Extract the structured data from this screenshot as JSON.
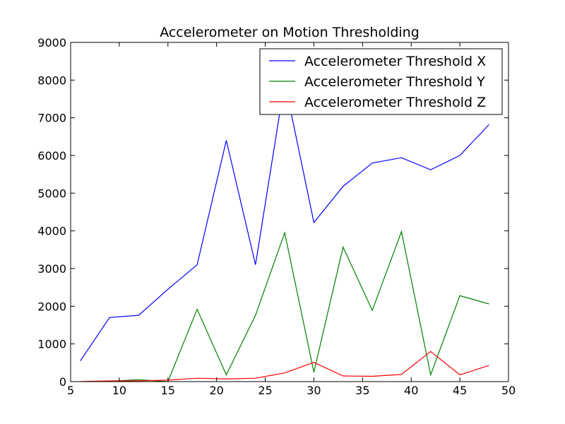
{
  "chart_data": {
    "type": "line",
    "title": "Accelerometer on Motion Thresholding",
    "xlabel": "",
    "ylabel": "",
    "xlim": [
      5,
      50
    ],
    "ylim": [
      0,
      9000
    ],
    "xticks": [
      "5",
      "10",
      "15",
      "20",
      "25",
      "30",
      "35",
      "40",
      "45",
      "50"
    ],
    "yticks": [
      "0",
      "1000",
      "2000",
      "3000",
      "4000",
      "5000",
      "6000",
      "7000",
      "8000",
      "9000"
    ],
    "grid": false,
    "legend_position": "top-right",
    "x": [
      6,
      9,
      12,
      15,
      18,
      21,
      24,
      27,
      30,
      33,
      36,
      39,
      42,
      45,
      48
    ],
    "series": [
      {
        "name": "Accelerometer Threshold X",
        "color": "#0000ff",
        "values": [
          550,
          1700,
          1760,
          2450,
          3100,
          6400,
          3100,
          7950,
          4220,
          5180,
          5800,
          5940,
          5620,
          6000,
          6820
        ]
      },
      {
        "name": "Accelerometer Threshold Y",
        "color": "#008000",
        "values": [
          0,
          10,
          50,
          0,
          1920,
          180,
          1760,
          3950,
          250,
          3570,
          1890,
          3980,
          180,
          2280,
          2060
        ]
      },
      {
        "name": "Accelerometer Threshold Z",
        "color": "#ff0000",
        "values": [
          0,
          20,
          20,
          40,
          90,
          70,
          90,
          230,
          510,
          150,
          140,
          190,
          800,
          180,
          430
        ]
      }
    ]
  }
}
